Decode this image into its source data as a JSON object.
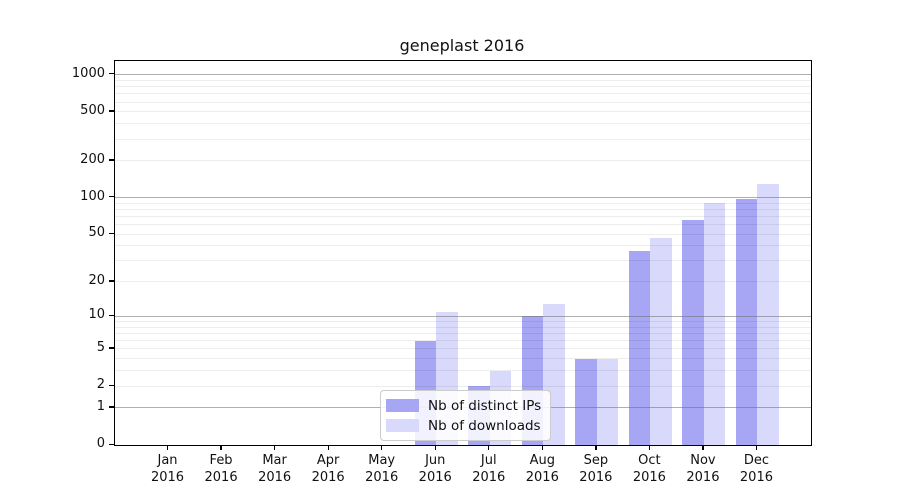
{
  "chart_data": {
    "type": "bar",
    "title": "geneplast 2016",
    "categories": [
      {
        "label": "Jan",
        "year": "2016"
      },
      {
        "label": "Feb",
        "year": "2016"
      },
      {
        "label": "Mar",
        "year": "2016"
      },
      {
        "label": "Apr",
        "year": "2016"
      },
      {
        "label": "May",
        "year": "2016"
      },
      {
        "label": "Jun",
        "year": "2016"
      },
      {
        "label": "Jul",
        "year": "2016"
      },
      {
        "label": "Aug",
        "year": "2016"
      },
      {
        "label": "Sep",
        "year": "2016"
      },
      {
        "label": "Oct",
        "year": "2016"
      },
      {
        "label": "Nov",
        "year": "2016"
      },
      {
        "label": "Dec",
        "year": "2016"
      }
    ],
    "series": [
      {
        "name": "Nb of distinct IPs",
        "color": "#a6a6f4",
        "values": [
          0,
          0,
          0,
          0,
          0,
          6,
          2,
          10,
          4,
          36,
          66,
          97
        ]
      },
      {
        "name": "Nb of downloads",
        "color": "#d9d9fb",
        "values": [
          0,
          0,
          0,
          0,
          0,
          11,
          3,
          13,
          4,
          47,
          90,
          130
        ]
      }
    ],
    "yscale": "log1p",
    "yticks": [
      0,
      1,
      2,
      5,
      10,
      20,
      50,
      100,
      200,
      500,
      1000
    ],
    "ylim": [
      0,
      1300
    ],
    "grid": {
      "major_values": [
        1,
        10,
        100,
        1000
      ],
      "major_color": "rgba(110,110,110,0.55)",
      "minor_color": "rgba(0,0,0,0.07)",
      "minor_rule": "multiples 2-9 of each decade 1,10,100"
    },
    "legend_position": "inside-bottom-center-left",
    "xlabel": "",
    "ylabel": ""
  }
}
